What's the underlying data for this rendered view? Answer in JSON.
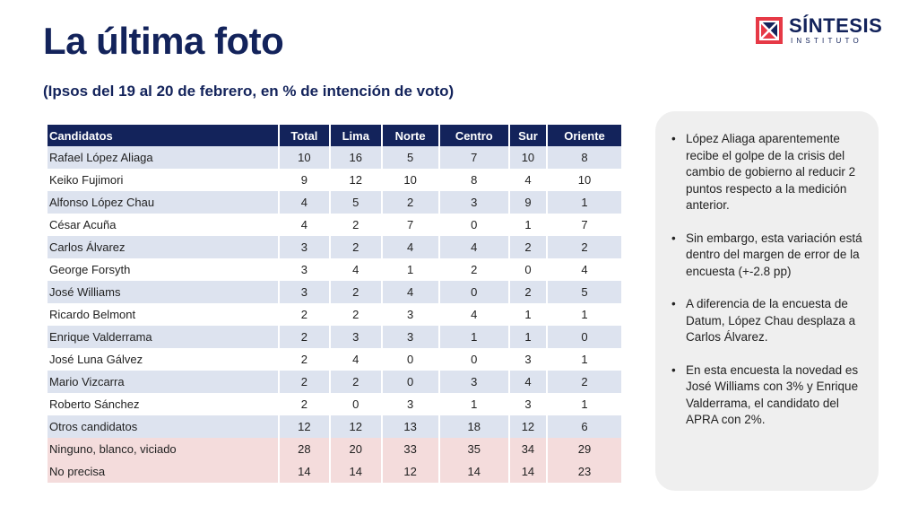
{
  "title": "La última foto",
  "subtitle": "(Ipsos del 19 al 20 de febrero, en % de intención de voto)",
  "logo": {
    "name": "SÍNTESIS",
    "sub": "INSTITUTO",
    "brand_color": "#13235b",
    "accent_color": "#e63946"
  },
  "table": {
    "headers": [
      "Candidatos",
      "Total",
      "Lima",
      "Norte",
      "Centro",
      "Sur",
      "Oriente"
    ],
    "rows": [
      [
        "Rafael López Aliaga",
        "10",
        "16",
        "5",
        "7",
        "10",
        "8"
      ],
      [
        "Keiko Fujimori",
        "9",
        "12",
        "10",
        "8",
        "4",
        "10"
      ],
      [
        "Alfonso López Chau",
        "4",
        "5",
        "2",
        "3",
        "9",
        "1"
      ],
      [
        "César Acuña",
        "4",
        "2",
        "7",
        "0",
        "1",
        "7"
      ],
      [
        "Carlos Álvarez",
        "3",
        "2",
        "4",
        "4",
        "2",
        "2"
      ],
      [
        "George Forsyth",
        "3",
        "4",
        "1",
        "2",
        "0",
        "4"
      ],
      [
        "José Williams",
        "3",
        "2",
        "4",
        "0",
        "2",
        "5"
      ],
      [
        "Ricardo Belmont",
        "2",
        "2",
        "3",
        "4",
        "1",
        "1"
      ],
      [
        "Enrique Valderrama",
        "2",
        "3",
        "3",
        "1",
        "1",
        "0"
      ],
      [
        "José Luna Gálvez",
        "2",
        "4",
        "0",
        "0",
        "3",
        "1"
      ],
      [
        "Mario Vizcarra",
        "2",
        "2",
        "0",
        "3",
        "4",
        "2"
      ],
      [
        "Roberto Sánchez",
        "2",
        "0",
        "3",
        "1",
        "3",
        "1"
      ],
      [
        "Otros candidatos",
        "12",
        "12",
        "13",
        "18",
        "12",
        "6"
      ],
      [
        "Ninguno, blanco, viciado",
        "28",
        "20",
        "33",
        "35",
        "34",
        "29"
      ],
      [
        "No precisa",
        "14",
        "14",
        "12",
        "14",
        "14",
        "23"
      ]
    ]
  },
  "notes": {
    "bullet": "•",
    "items": [
      "López Aliaga aparentemente recibe el golpe de la crisis del cambio de gobierno al reducir 2 puntos respecto a la medición anterior.",
      "Sin embargo, esta variación está dentro del margen de error de la encuesta (+-2.8 pp)",
      "A diferencia de la encuesta de Datum, López Chau desplaza a Carlos Álvarez.",
      "En esta encuesta la novedad es José Williams con 3% y Enrique Valderrama, el candidato del APRA con 2%."
    ]
  }
}
